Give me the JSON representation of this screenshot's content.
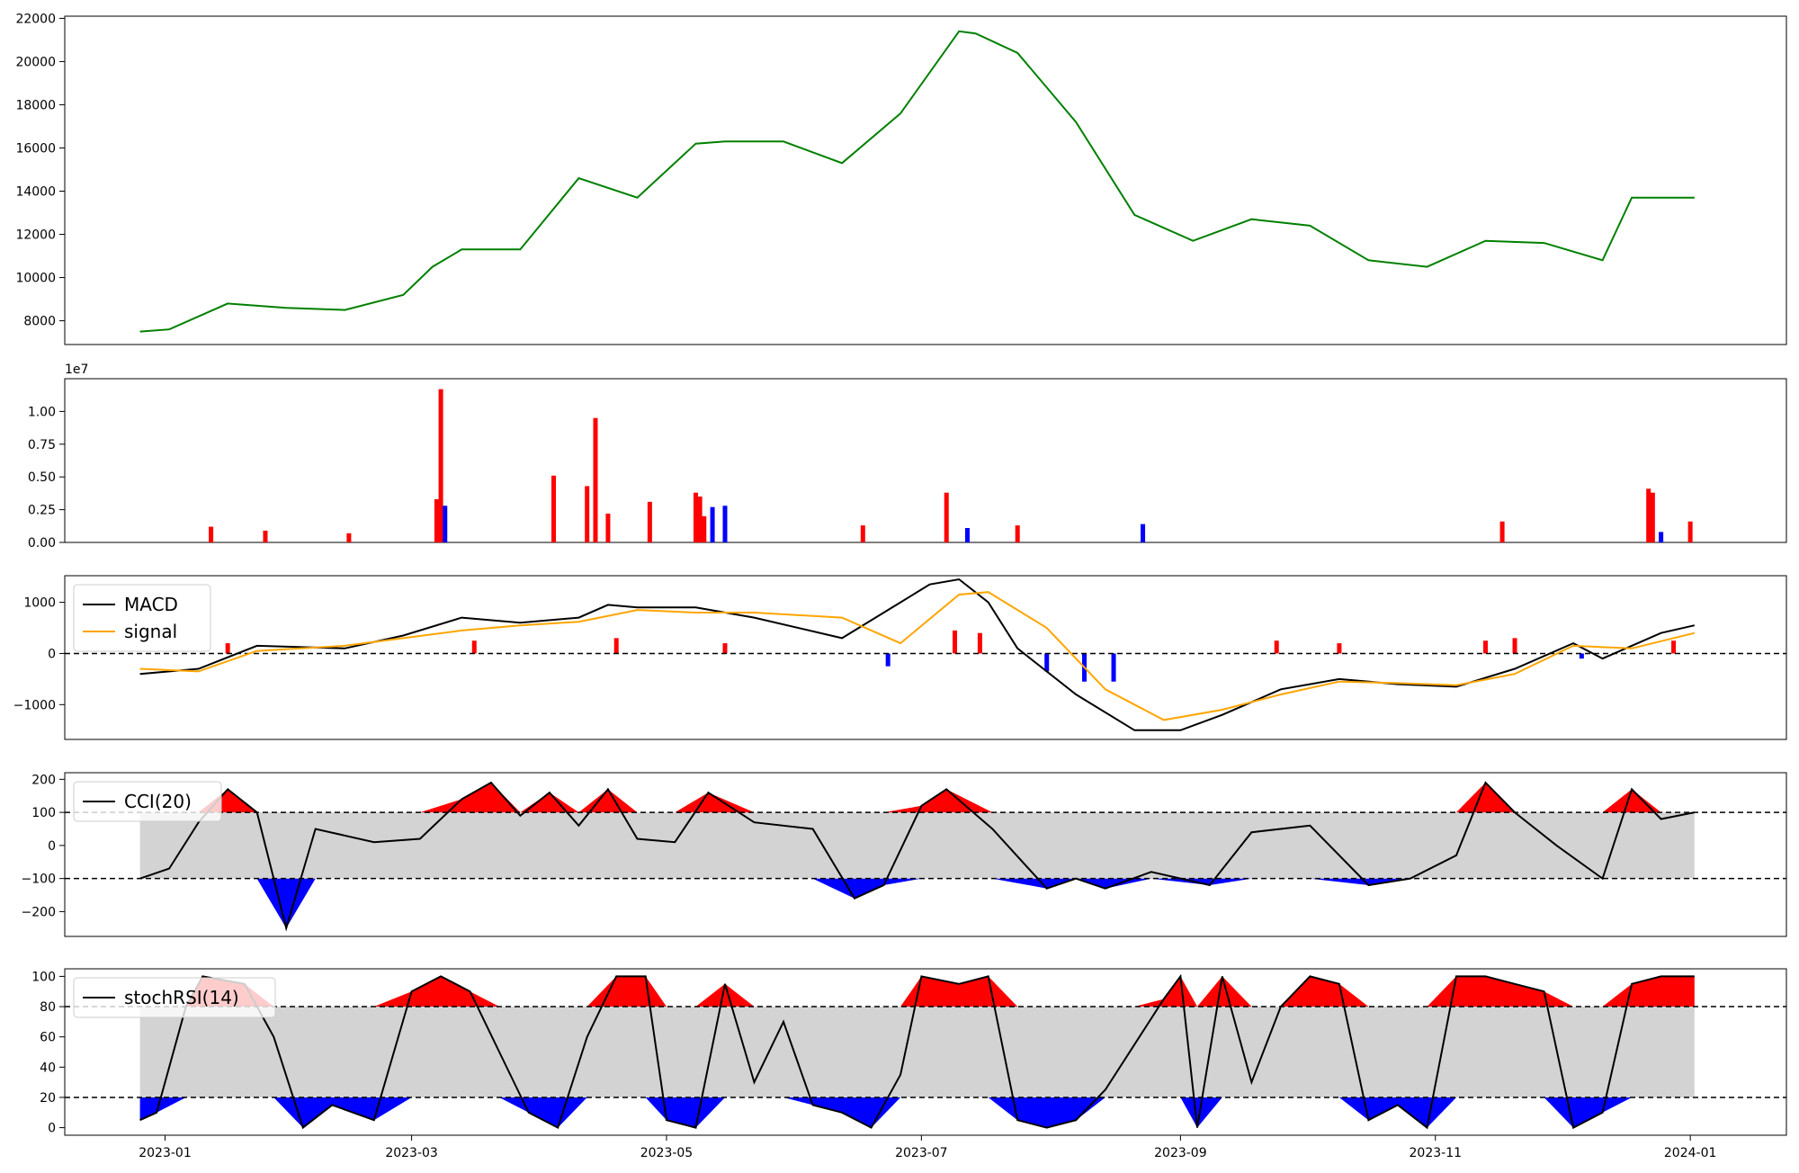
{
  "colors": {
    "price": "#008000",
    "up": "#ff0000",
    "down": "#0000ff",
    "macd": "#000000",
    "signal": "#ffa500",
    "band": "#d3d3d3",
    "zero": "#000000"
  },
  "shared_x": {
    "range": [
      "2022-12-08",
      "2024-01-24"
    ],
    "ticks": [
      "2023-01",
      "2023-03",
      "2023-05",
      "2023-07",
      "2023-09",
      "2023-11",
      "2024-01"
    ],
    "tick_dates": [
      "2023-01-01",
      "2023-03-01",
      "2023-05-01",
      "2023-07-01",
      "2023-09-01",
      "2023-11-01",
      "2024-01-01"
    ]
  },
  "chart_data": [
    {
      "type": "line",
      "name": "price",
      "ylim": [
        6900,
        22100
      ],
      "yticks": [
        "8000",
        "10000",
        "12000",
        "14000",
        "16000",
        "18000",
        "20000",
        "22000"
      ],
      "ytick_values": [
        8000,
        10000,
        12000,
        14000,
        16000,
        18000,
        20000,
        22000
      ],
      "grid": false,
      "x": [
        "2022-12-26",
        "2023-01-02",
        "2023-01-16",
        "2023-01-30",
        "2023-02-13",
        "2023-02-27",
        "2023-03-06",
        "2023-03-13",
        "2023-03-27",
        "2023-04-10",
        "2023-04-24",
        "2023-05-08",
        "2023-05-15",
        "2023-05-29",
        "2023-06-12",
        "2023-06-26",
        "2023-07-10",
        "2023-07-14",
        "2023-07-24",
        "2023-08-07",
        "2023-08-21",
        "2023-09-04",
        "2023-09-18",
        "2023-10-02",
        "2023-10-16",
        "2023-10-30",
        "2023-11-13",
        "2023-11-27",
        "2023-12-11",
        "2023-12-18",
        "2024-01-02"
      ],
      "y": [
        7500,
        7600,
        8800,
        8600,
        8500,
        9200,
        10500,
        11300,
        11300,
        14600,
        13700,
        16200,
        16300,
        16300,
        15300,
        17600,
        21400,
        21300,
        20400,
        17200,
        12900,
        11700,
        12700,
        12400,
        10800,
        10500,
        11700,
        11600,
        10800,
        13700,
        13700
      ]
    },
    {
      "type": "bar",
      "name": "volume",
      "ylim": [
        0,
        12500000
      ],
      "yticks": [
        "0.00",
        "0.25",
        "0.50",
        "0.75",
        "1.00"
      ],
      "ytick_values": [
        0,
        2500000,
        5000000,
        7500000,
        10000000
      ],
      "exponent_label": "1e7",
      "grid": false,
      "x": [
        "2023-01-12",
        "2023-01-25",
        "2023-02-14",
        "2023-03-07",
        "2023-03-08",
        "2023-03-09",
        "2023-04-04",
        "2023-04-12",
        "2023-04-14",
        "2023-04-17",
        "2023-04-27",
        "2023-05-08",
        "2023-05-09",
        "2023-05-10",
        "2023-05-12",
        "2023-05-15",
        "2023-06-17",
        "2023-07-07",
        "2023-07-12",
        "2023-07-24",
        "2023-08-23",
        "2023-11-17",
        "2023-12-22",
        "2023-12-23",
        "2023-12-25",
        "2024-01-01"
      ],
      "values": [
        1200000,
        900000,
        700000,
        3300000,
        11700000,
        2800000,
        5100000,
        4300000,
        9500000,
        2200000,
        3100000,
        3800000,
        3500000,
        2000000,
        2700000,
        2800000,
        1300000,
        3800000,
        1100000,
        1300000,
        1400000,
        1600000,
        4100000,
        3800000,
        800000,
        1600000
      ],
      "colors": [
        "up",
        "up",
        "up",
        "up",
        "up",
        "down",
        "up",
        "up",
        "up",
        "up",
        "up",
        "up",
        "up",
        "up",
        "down",
        "down",
        "up",
        "up",
        "down",
        "up",
        "down",
        "up",
        "up",
        "up",
        "down",
        "up"
      ]
    },
    {
      "type": "line",
      "name": "macd",
      "ylim": [
        -1680,
        1520
      ],
      "yticks": [
        "−1000",
        "0",
        "1000"
      ],
      "ytick_values": [
        -1000,
        0,
        1000
      ],
      "legend": [
        "MACD",
        "signal"
      ],
      "legend_position": "upper left",
      "hline": 0,
      "grid": false,
      "series": [
        {
          "name": "MACD",
          "x": [
            "2022-12-26",
            "2023-01-09",
            "2023-01-23",
            "2023-02-13",
            "2023-02-27",
            "2023-03-13",
            "2023-03-27",
            "2023-04-10",
            "2023-04-17",
            "2023-04-24",
            "2023-05-08",
            "2023-05-22",
            "2023-06-12",
            "2023-06-26",
            "2023-07-03",
            "2023-07-10",
            "2023-07-17",
            "2023-07-24",
            "2023-08-07",
            "2023-08-21",
            "2023-09-01",
            "2023-09-11",
            "2023-09-25",
            "2023-10-09",
            "2023-10-23",
            "2023-11-06",
            "2023-11-20",
            "2023-12-04",
            "2023-12-11",
            "2023-12-25",
            "2024-01-02"
          ],
          "y": [
            -400,
            -300,
            150,
            100,
            350,
            700,
            600,
            700,
            950,
            900,
            900,
            700,
            300,
            1000,
            1350,
            1450,
            1000,
            100,
            -800,
            -1500,
            -1500,
            -1200,
            -700,
            -500,
            -600,
            -650,
            -300,
            200,
            -100,
            400,
            550
          ]
        },
        {
          "name": "signal",
          "x": [
            "2022-12-26",
            "2023-01-09",
            "2023-01-23",
            "2023-02-13",
            "2023-02-27",
            "2023-03-13",
            "2023-03-27",
            "2023-04-10",
            "2023-04-24",
            "2023-05-08",
            "2023-05-22",
            "2023-06-12",
            "2023-06-26",
            "2023-07-10",
            "2023-07-17",
            "2023-07-31",
            "2023-08-14",
            "2023-08-28",
            "2023-09-11",
            "2023-09-25",
            "2023-10-09",
            "2023-10-23",
            "2023-11-06",
            "2023-11-20",
            "2023-12-04",
            "2023-12-18",
            "2024-01-02"
          ],
          "y": [
            -300,
            -350,
            50,
            150,
            300,
            450,
            550,
            620,
            850,
            800,
            800,
            700,
            200,
            1150,
            1200,
            500,
            -700,
            -1300,
            -1100,
            -800,
            -550,
            -580,
            -620,
            -400,
            150,
            100,
            400
          ]
        }
      ],
      "bars": {
        "x": [
          "2023-01-16",
          "2023-03-16",
          "2023-04-19",
          "2023-05-15",
          "2023-06-23",
          "2023-07-09",
          "2023-07-15",
          "2023-07-31",
          "2023-08-09",
          "2023-08-16",
          "2023-09-24",
          "2023-10-09",
          "2023-11-13",
          "2023-11-20",
          "2023-12-06",
          "2023-12-28"
        ],
        "values": [
          200,
          250,
          300,
          200,
          -250,
          450,
          400,
          -350,
          -550,
          -550,
          250,
          200,
          250,
          300,
          -100,
          250
        ],
        "colors": [
          "up",
          "up",
          "up",
          "up",
          "down",
          "up",
          "up",
          "down",
          "down",
          "down",
          "up",
          "up",
          "up",
          "up",
          "down",
          "up"
        ]
      }
    },
    {
      "type": "area",
      "name": "cci",
      "ylim": [
        -275,
        220
      ],
      "yticks": [
        "−200",
        "−100",
        "0",
        "100",
        "200"
      ],
      "ytick_values": [
        -200,
        -100,
        0,
        100,
        200
      ],
      "legend": [
        "CCI(20)"
      ],
      "legend_position": "upper left",
      "bands": [
        -100,
        100
      ],
      "grid": false,
      "x": [
        "2022-12-26",
        "2023-01-02",
        "2023-01-09",
        "2023-01-16",
        "2023-01-23",
        "2023-01-30",
        "2023-02-06",
        "2023-02-20",
        "2023-03-03",
        "2023-03-13",
        "2023-03-20",
        "2023-03-27",
        "2023-04-03",
        "2023-04-10",
        "2023-04-17",
        "2023-04-24",
        "2023-05-03",
        "2023-05-11",
        "2023-05-22",
        "2023-06-05",
        "2023-06-15",
        "2023-06-22",
        "2023-07-01",
        "2023-07-07",
        "2023-07-18",
        "2023-07-31",
        "2023-08-07",
        "2023-08-14",
        "2023-08-25",
        "2023-09-08",
        "2023-09-18",
        "2023-10-02",
        "2023-10-16",
        "2023-10-26",
        "2023-11-06",
        "2023-11-13",
        "2023-11-20",
        "2023-11-30",
        "2023-12-11",
        "2023-12-18",
        "2023-12-25",
        "2024-01-02"
      ],
      "y": [
        -100,
        -70,
        70,
        170,
        100,
        -250,
        50,
        10,
        20,
        140,
        190,
        90,
        160,
        60,
        170,
        20,
        10,
        160,
        70,
        50,
        -160,
        -120,
        120,
        170,
        50,
        -130,
        -100,
        -130,
        -80,
        -120,
        40,
        60,
        -120,
        -100,
        -30,
        190,
        100,
        0,
        -100,
        170,
        80,
        100
      ]
    },
    {
      "type": "area",
      "name": "stochrsi",
      "ylim": [
        -5,
        105
      ],
      "yticks": [
        "0",
        "20",
        "40",
        "60",
        "80",
        "100"
      ],
      "ytick_values": [
        0,
        20,
        40,
        60,
        80,
        100
      ],
      "legend": [
        "stochRSI(14)"
      ],
      "legend_position": "upper left",
      "bands": [
        20,
        80
      ],
      "grid": false,
      "x": [
        "2022-12-26",
        "2022-12-30",
        "2023-01-06",
        "2023-01-10",
        "2023-01-20",
        "2023-01-27",
        "2023-02-03",
        "2023-02-10",
        "2023-02-20",
        "2023-03-01",
        "2023-03-08",
        "2023-03-15",
        "2023-03-22",
        "2023-03-29",
        "2023-04-05",
        "2023-04-12",
        "2023-04-19",
        "2023-04-26",
        "2023-05-01",
        "2023-05-08",
        "2023-05-15",
        "2023-05-22",
        "2023-05-29",
        "2023-06-05",
        "2023-06-12",
        "2023-06-19",
        "2023-06-26",
        "2023-07-01",
        "2023-07-10",
        "2023-07-17",
        "2023-07-24",
        "2023-07-31",
        "2023-08-07",
        "2023-08-14",
        "2023-08-21",
        "2023-08-28",
        "2023-09-01",
        "2023-09-05",
        "2023-09-11",
        "2023-09-18",
        "2023-09-25",
        "2023-10-02",
        "2023-10-09",
        "2023-10-16",
        "2023-10-23",
        "2023-10-30",
        "2023-11-06",
        "2023-11-13",
        "2023-11-20",
        "2023-11-27",
        "2023-12-04",
        "2023-12-11",
        "2023-12-18",
        "2023-12-25",
        "2024-01-02"
      ],
      "y": [
        5,
        10,
        80,
        100,
        95,
        60,
        0,
        15,
        5,
        90,
        100,
        90,
        50,
        10,
        0,
        60,
        100,
        100,
        5,
        0,
        95,
        30,
        70,
        15,
        10,
        0,
        35,
        100,
        95,
        100,
        5,
        0,
        5,
        25,
        55,
        85,
        100,
        0,
        100,
        30,
        80,
        100,
        95,
        5,
        15,
        0,
        100,
        100,
        95,
        90,
        0,
        10,
        95,
        100,
        100
      ]
    }
  ]
}
